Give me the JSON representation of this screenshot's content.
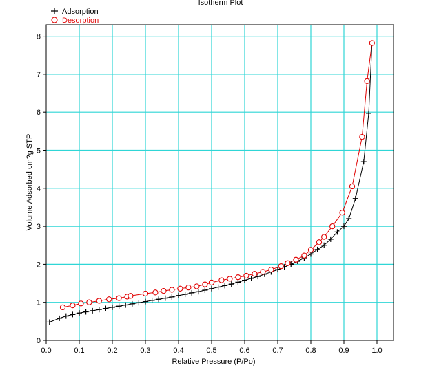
{
  "chart_data": {
    "type": "scatter",
    "title": "Isotherm Plot",
    "xlabel": "Relative Pressure (P/Po)",
    "ylabel": "Volume Adsorbed cm?g STP",
    "xlim": [
      0.0,
      1.05
    ],
    "ylim": [
      0,
      8.3
    ],
    "xticks": [
      0.0,
      0.1,
      0.2,
      0.3,
      0.4,
      0.5,
      0.6,
      0.7,
      0.8,
      0.9,
      1.0
    ],
    "xtick_labels": [
      "0.0",
      "0.1",
      "0.2",
      "0.3",
      "0.4",
      "0.5",
      "0.6",
      "0.7",
      "0.8",
      "0.9",
      "1.0"
    ],
    "yticks": [
      0,
      1,
      2,
      3,
      4,
      5,
      6,
      7,
      8
    ],
    "ytick_labels": [
      "0",
      "1",
      "2",
      "3",
      "4",
      "5",
      "6",
      "7",
      "8"
    ],
    "grid": true,
    "grid_color": "#2fd6d6",
    "legend_position": "top-left",
    "series": [
      {
        "name": "Adsorption",
        "marker": "plus",
        "color": "#000000",
        "line_color": "#000000",
        "x": [
          0.01,
          0.04,
          0.06,
          0.08,
          0.1,
          0.12,
          0.14,
          0.16,
          0.18,
          0.2,
          0.22,
          0.24,
          0.26,
          0.28,
          0.3,
          0.32,
          0.34,
          0.36,
          0.38,
          0.4,
          0.42,
          0.44,
          0.46,
          0.48,
          0.5,
          0.52,
          0.54,
          0.56,
          0.58,
          0.6,
          0.62,
          0.64,
          0.66,
          0.68,
          0.7,
          0.72,
          0.74,
          0.76,
          0.78,
          0.8,
          0.82,
          0.84,
          0.86,
          0.88,
          0.9,
          0.915,
          0.935,
          0.96,
          0.975,
          0.985
        ],
        "y": [
          0.48,
          0.58,
          0.64,
          0.68,
          0.72,
          0.75,
          0.78,
          0.81,
          0.84,
          0.87,
          0.9,
          0.93,
          0.96,
          0.99,
          1.02,
          1.05,
          1.08,
          1.11,
          1.14,
          1.18,
          1.21,
          1.25,
          1.28,
          1.32,
          1.36,
          1.4,
          1.44,
          1.48,
          1.53,
          1.58,
          1.63,
          1.68,
          1.74,
          1.8,
          1.86,
          1.93,
          2.0,
          2.08,
          2.17,
          2.27,
          2.39,
          2.5,
          2.66,
          2.85,
          3.0,
          3.2,
          3.73,
          4.7,
          5.97,
          7.82
        ]
      },
      {
        "name": "Desorption",
        "marker": "circle",
        "color": "#e00000",
        "line_color": "#e00000",
        "x": [
          0.05,
          0.08,
          0.105,
          0.13,
          0.16,
          0.19,
          0.22,
          0.245,
          0.255,
          0.3,
          0.33,
          0.355,
          0.38,
          0.405,
          0.43,
          0.455,
          0.48,
          0.5,
          0.53,
          0.555,
          0.58,
          0.605,
          0.63,
          0.655,
          0.68,
          0.71,
          0.73,
          0.755,
          0.78,
          0.8,
          0.825,
          0.84,
          0.865,
          0.895,
          0.925,
          0.955,
          0.97,
          0.985
        ],
        "y": [
          0.87,
          0.92,
          0.97,
          1.0,
          1.04,
          1.08,
          1.11,
          1.15,
          1.17,
          1.23,
          1.26,
          1.3,
          1.33,
          1.36,
          1.39,
          1.42,
          1.47,
          1.52,
          1.58,
          1.62,
          1.66,
          1.7,
          1.75,
          1.8,
          1.86,
          1.95,
          2.03,
          2.12,
          2.23,
          2.38,
          2.58,
          2.72,
          3.0,
          3.36,
          4.05,
          5.35,
          6.82,
          7.82
        ]
      }
    ]
  }
}
